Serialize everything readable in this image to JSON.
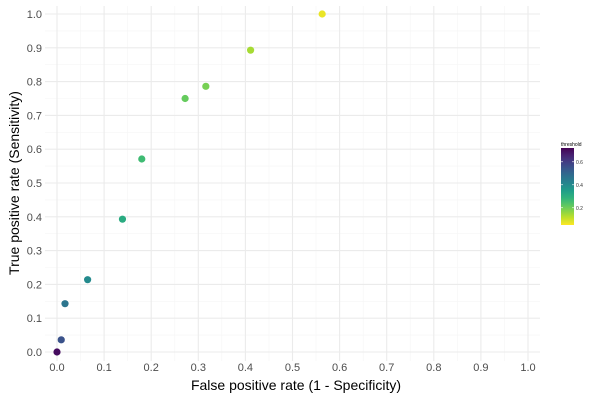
{
  "chart_data": {
    "type": "scatter",
    "xlabel": "False positive rate (1 - Specificity)",
    "ylabel": "True positive rate (Sensitivity)",
    "xlim": [
      0,
      1
    ],
    "ylim": [
      0,
      1
    ],
    "x_ticks": [
      "0.0",
      "0.1",
      "0.2",
      "0.3",
      "0.4",
      "0.5",
      "0.6",
      "0.7",
      "0.8",
      "0.9",
      "1.0"
    ],
    "y_ticks": [
      "0.0",
      "0.1",
      "0.2",
      "0.3",
      "0.4",
      "0.5",
      "0.6",
      "0.7",
      "0.8",
      "0.9",
      "1.0"
    ],
    "grid": true,
    "series": [
      {
        "points": [
          {
            "x": 0.563,
            "y": 1.0,
            "threshold": 0.07
          },
          {
            "x": 0.411,
            "y": 0.893,
            "threshold": 0.14
          },
          {
            "x": 0.316,
            "y": 0.786,
            "threshold": 0.19
          },
          {
            "x": 0.272,
            "y": 0.75,
            "threshold": 0.21
          },
          {
            "x": 0.18,
            "y": 0.571,
            "threshold": 0.26
          },
          {
            "x": 0.139,
            "y": 0.393,
            "threshold": 0.31
          },
          {
            "x": 0.065,
            "y": 0.214,
            "threshold": 0.4
          },
          {
            "x": 0.017,
            "y": 0.143,
            "threshold": 0.46
          },
          {
            "x": 0.009,
            "y": 0.036,
            "threshold": 0.55
          },
          {
            "x": 0.0,
            "y": 0.0,
            "threshold": 0.7
          }
        ]
      }
    ],
    "color_scale": {
      "title": "threshold",
      "palette": "viridis",
      "range": [
        0.05,
        0.72
      ],
      "ticks": [
        "0.6",
        "0.4",
        "0.2"
      ],
      "tick_values": [
        0.6,
        0.4,
        0.2
      ],
      "legend_position": "right"
    }
  },
  "colors": {
    "grid_major": "#ebebeb",
    "grid_minor": "#f5f5f5",
    "viridis": [
      "#440154",
      "#482878",
      "#3e4989",
      "#31688e",
      "#26828e",
      "#1f9e89",
      "#35b779",
      "#6ece58",
      "#b5de2b",
      "#fde725"
    ]
  }
}
